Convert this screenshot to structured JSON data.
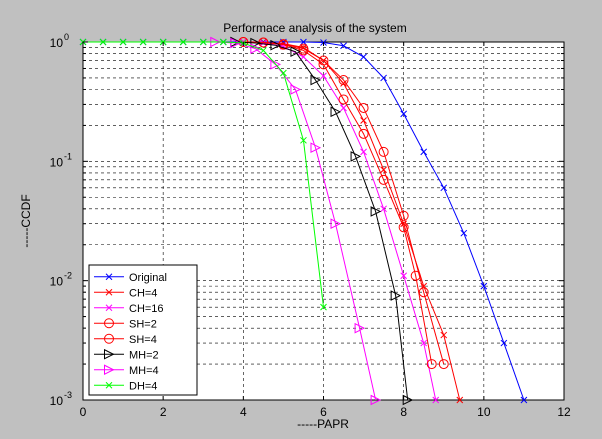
{
  "chart_data": {
    "type": "line",
    "title": "Performace analysis of the system",
    "xlabel": "-----PAPR",
    "ylabel": "-----CCDF",
    "xlim": [
      0,
      12
    ],
    "ylim": [
      0.001,
      1
    ],
    "yscale": "log",
    "grid": true,
    "legend_position": "bottom-left",
    "x_ticks": [
      "0",
      "2",
      "4",
      "6",
      "8",
      "10",
      "12"
    ],
    "y_ticks": [
      {
        "base": "10",
        "exp": "0",
        "value": 1
      },
      {
        "base": "10",
        "exp": "-1",
        "value": 0.1
      },
      {
        "base": "10",
        "exp": "-2",
        "value": 0.01
      },
      {
        "base": "10",
        "exp": "-3",
        "value": 0.001
      }
    ],
    "series": [
      {
        "name": "Original",
        "color": "#0000ff",
        "marker": "x",
        "x": [
          0,
          0.5,
          1,
          1.5,
          2,
          2.5,
          3,
          3.5,
          4,
          4.5,
          5,
          5.5,
          6,
          6.5,
          7,
          7.5,
          8,
          8.5,
          9,
          9.5,
          10,
          10.5,
          11
        ],
        "y": [
          1,
          1,
          1,
          1,
          1,
          1,
          1,
          1,
          1,
          1,
          1,
          1,
          0.99,
          0.93,
          0.75,
          0.5,
          0.25,
          0.12,
          0.06,
          0.025,
          0.009,
          0.003,
          0.001
        ]
      },
      {
        "name": "CH=4",
        "color": "#ff0000",
        "marker": "x",
        "x": [
          4,
          4.5,
          5,
          5.5,
          6,
          6.5,
          7,
          7.5,
          8,
          8.5,
          9,
          9.4
        ],
        "y": [
          1,
          0.99,
          0.97,
          0.9,
          0.7,
          0.45,
          0.22,
          0.085,
          0.03,
          0.009,
          0.0035,
          0.001
        ]
      },
      {
        "name": "CH=16",
        "color": "#ff00ff",
        "marker": "x",
        "x": [
          4,
          4.5,
          5,
          5.5,
          6,
          6.5,
          7,
          7.5,
          8,
          8.5,
          8.8
        ],
        "y": [
          1,
          0.98,
          0.92,
          0.75,
          0.52,
          0.28,
          0.12,
          0.04,
          0.011,
          0.003,
          0.001
        ]
      },
      {
        "name": "SH=2",
        "color": "#ff0000",
        "marker": "o",
        "x": [
          4,
          4.5,
          5,
          5.5,
          6,
          6.5,
          7,
          7.5,
          8,
          8.5,
          9
        ],
        "y": [
          1,
          0.99,
          0.96,
          0.88,
          0.7,
          0.48,
          0.28,
          0.12,
          0.035,
          0.008,
          0.002
        ]
      },
      {
        "name": "SH=4",
        "color": "#ff0000",
        "marker": "o",
        "x": [
          4,
          4.5,
          5,
          5.5,
          6,
          6.5,
          7,
          7.5,
          8,
          8.3,
          8.7
        ],
        "y": [
          1,
          0.99,
          0.95,
          0.85,
          0.65,
          0.33,
          0.17,
          0.07,
          0.028,
          0.011,
          0.002
        ]
      },
      {
        "name": "MH=2",
        "color": "#000000",
        "marker": "triangle-right",
        "x": [
          3.8,
          4.3,
          4.8,
          5.3,
          5.8,
          6.3,
          6.8,
          7.3,
          7.8,
          8.1
        ],
        "y": [
          1,
          0.98,
          0.94,
          0.83,
          0.48,
          0.26,
          0.11,
          0.038,
          0.0075,
          0.001
        ]
      },
      {
        "name": "MH=4",
        "color": "#ff00ff",
        "marker": "triangle-right",
        "x": [
          3.3,
          3.8,
          4.3,
          4.8,
          5.3,
          5.8,
          6.3,
          6.9,
          7.3
        ],
        "y": [
          1,
          0.98,
          0.88,
          0.65,
          0.4,
          0.13,
          0.03,
          0.004,
          0.001
        ]
      },
      {
        "name": "DH=4",
        "color": "#00ff00",
        "marker": "x",
        "x": [
          0,
          0.5,
          1,
          1.5,
          2,
          2.5,
          3,
          3.5,
          4,
          4.5,
          5,
          5.5,
          6
        ],
        "y": [
          1,
          1,
          1,
          1,
          1,
          1,
          1,
          1,
          0.98,
          0.85,
          0.55,
          0.15,
          0.006
        ]
      }
    ]
  }
}
